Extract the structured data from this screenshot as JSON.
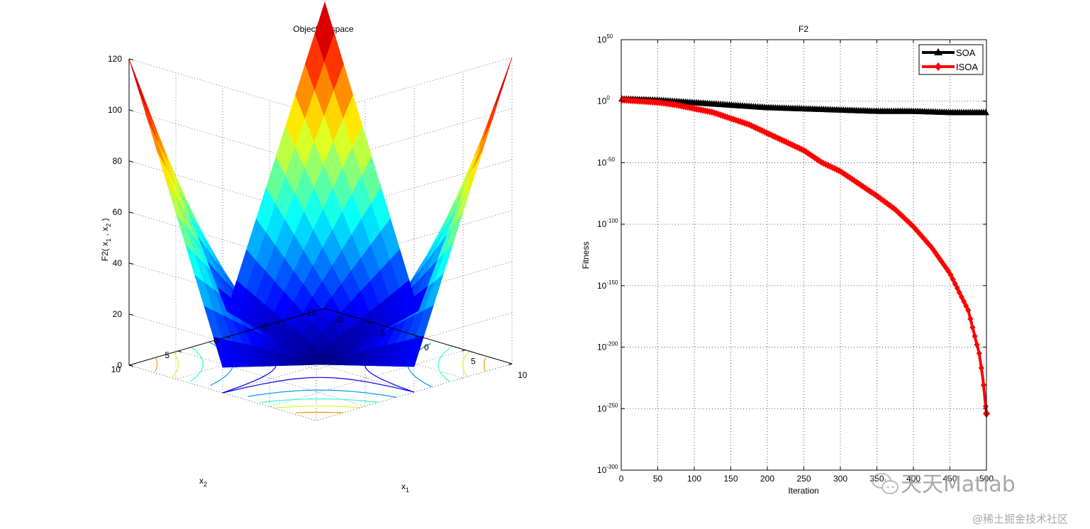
{
  "chart_data": [
    {
      "type": "surface",
      "title": "Objective space",
      "xlabel": "x1",
      "ylabel": "x2",
      "zlabel": "F2( x1 , x2 )",
      "x_ticks": [
        "-10",
        "-5",
        "0",
        "5",
        "10"
      ],
      "y_ticks": [
        "-10",
        "-5",
        "0",
        "5",
        "10"
      ],
      "z_ticks": [
        "0",
        "20",
        "40",
        "60",
        "80",
        "100",
        "120"
      ],
      "xlim": [
        -10,
        10
      ],
      "ylim": [
        -10,
        10
      ],
      "zlim": [
        0,
        120
      ],
      "grid": true,
      "colormap": "jet",
      "function": "|x1| + |x2| + |x1|*|x2|"
    },
    {
      "type": "line",
      "title": "F2",
      "xlabel": "Iteration",
      "ylabel": "Fitness",
      "yscale": "log",
      "xlim": [
        0,
        500
      ],
      "ylim_exponent": [
        -300,
        50
      ],
      "x_ticks": [
        "0",
        "50",
        "100",
        "150",
        "200",
        "250",
        "300",
        "350",
        "400",
        "450",
        "500"
      ],
      "y_tick_exponents": [
        "50",
        "0",
        "-50",
        "-100",
        "-150",
        "-200",
        "-250",
        "-300"
      ],
      "y_tick_base": "10",
      "grid": true,
      "legend_position": "top-right",
      "series": [
        {
          "name": "SOA",
          "color": "#000000",
          "marker": "triangle",
          "x": [
            1,
            50,
            100,
            150,
            200,
            250,
            300,
            350,
            400,
            450,
            500
          ],
          "log10_y": [
            2,
            1,
            -1,
            -3,
            -5,
            -6,
            -7,
            -8,
            -8,
            -9,
            -9
          ]
        },
        {
          "name": "ISOA",
          "color": "#ff0000",
          "marker": "diamond",
          "x": [
            1,
            25,
            50,
            75,
            100,
            125,
            150,
            175,
            200,
            225,
            250,
            275,
            300,
            325,
            350,
            375,
            400,
            425,
            450,
            475,
            490,
            495,
            500
          ],
          "log10_y": [
            1,
            0,
            -1,
            -3,
            -6,
            -9,
            -14,
            -19,
            -26,
            -33,
            -40,
            -50,
            -57,
            -67,
            -77,
            -88,
            -102,
            -119,
            -140,
            -170,
            -205,
            -225,
            -254
          ]
        }
      ]
    }
  ],
  "watermark": {
    "logo_text": "天天Matlab",
    "credit": "@稀土掘金技术社区"
  }
}
